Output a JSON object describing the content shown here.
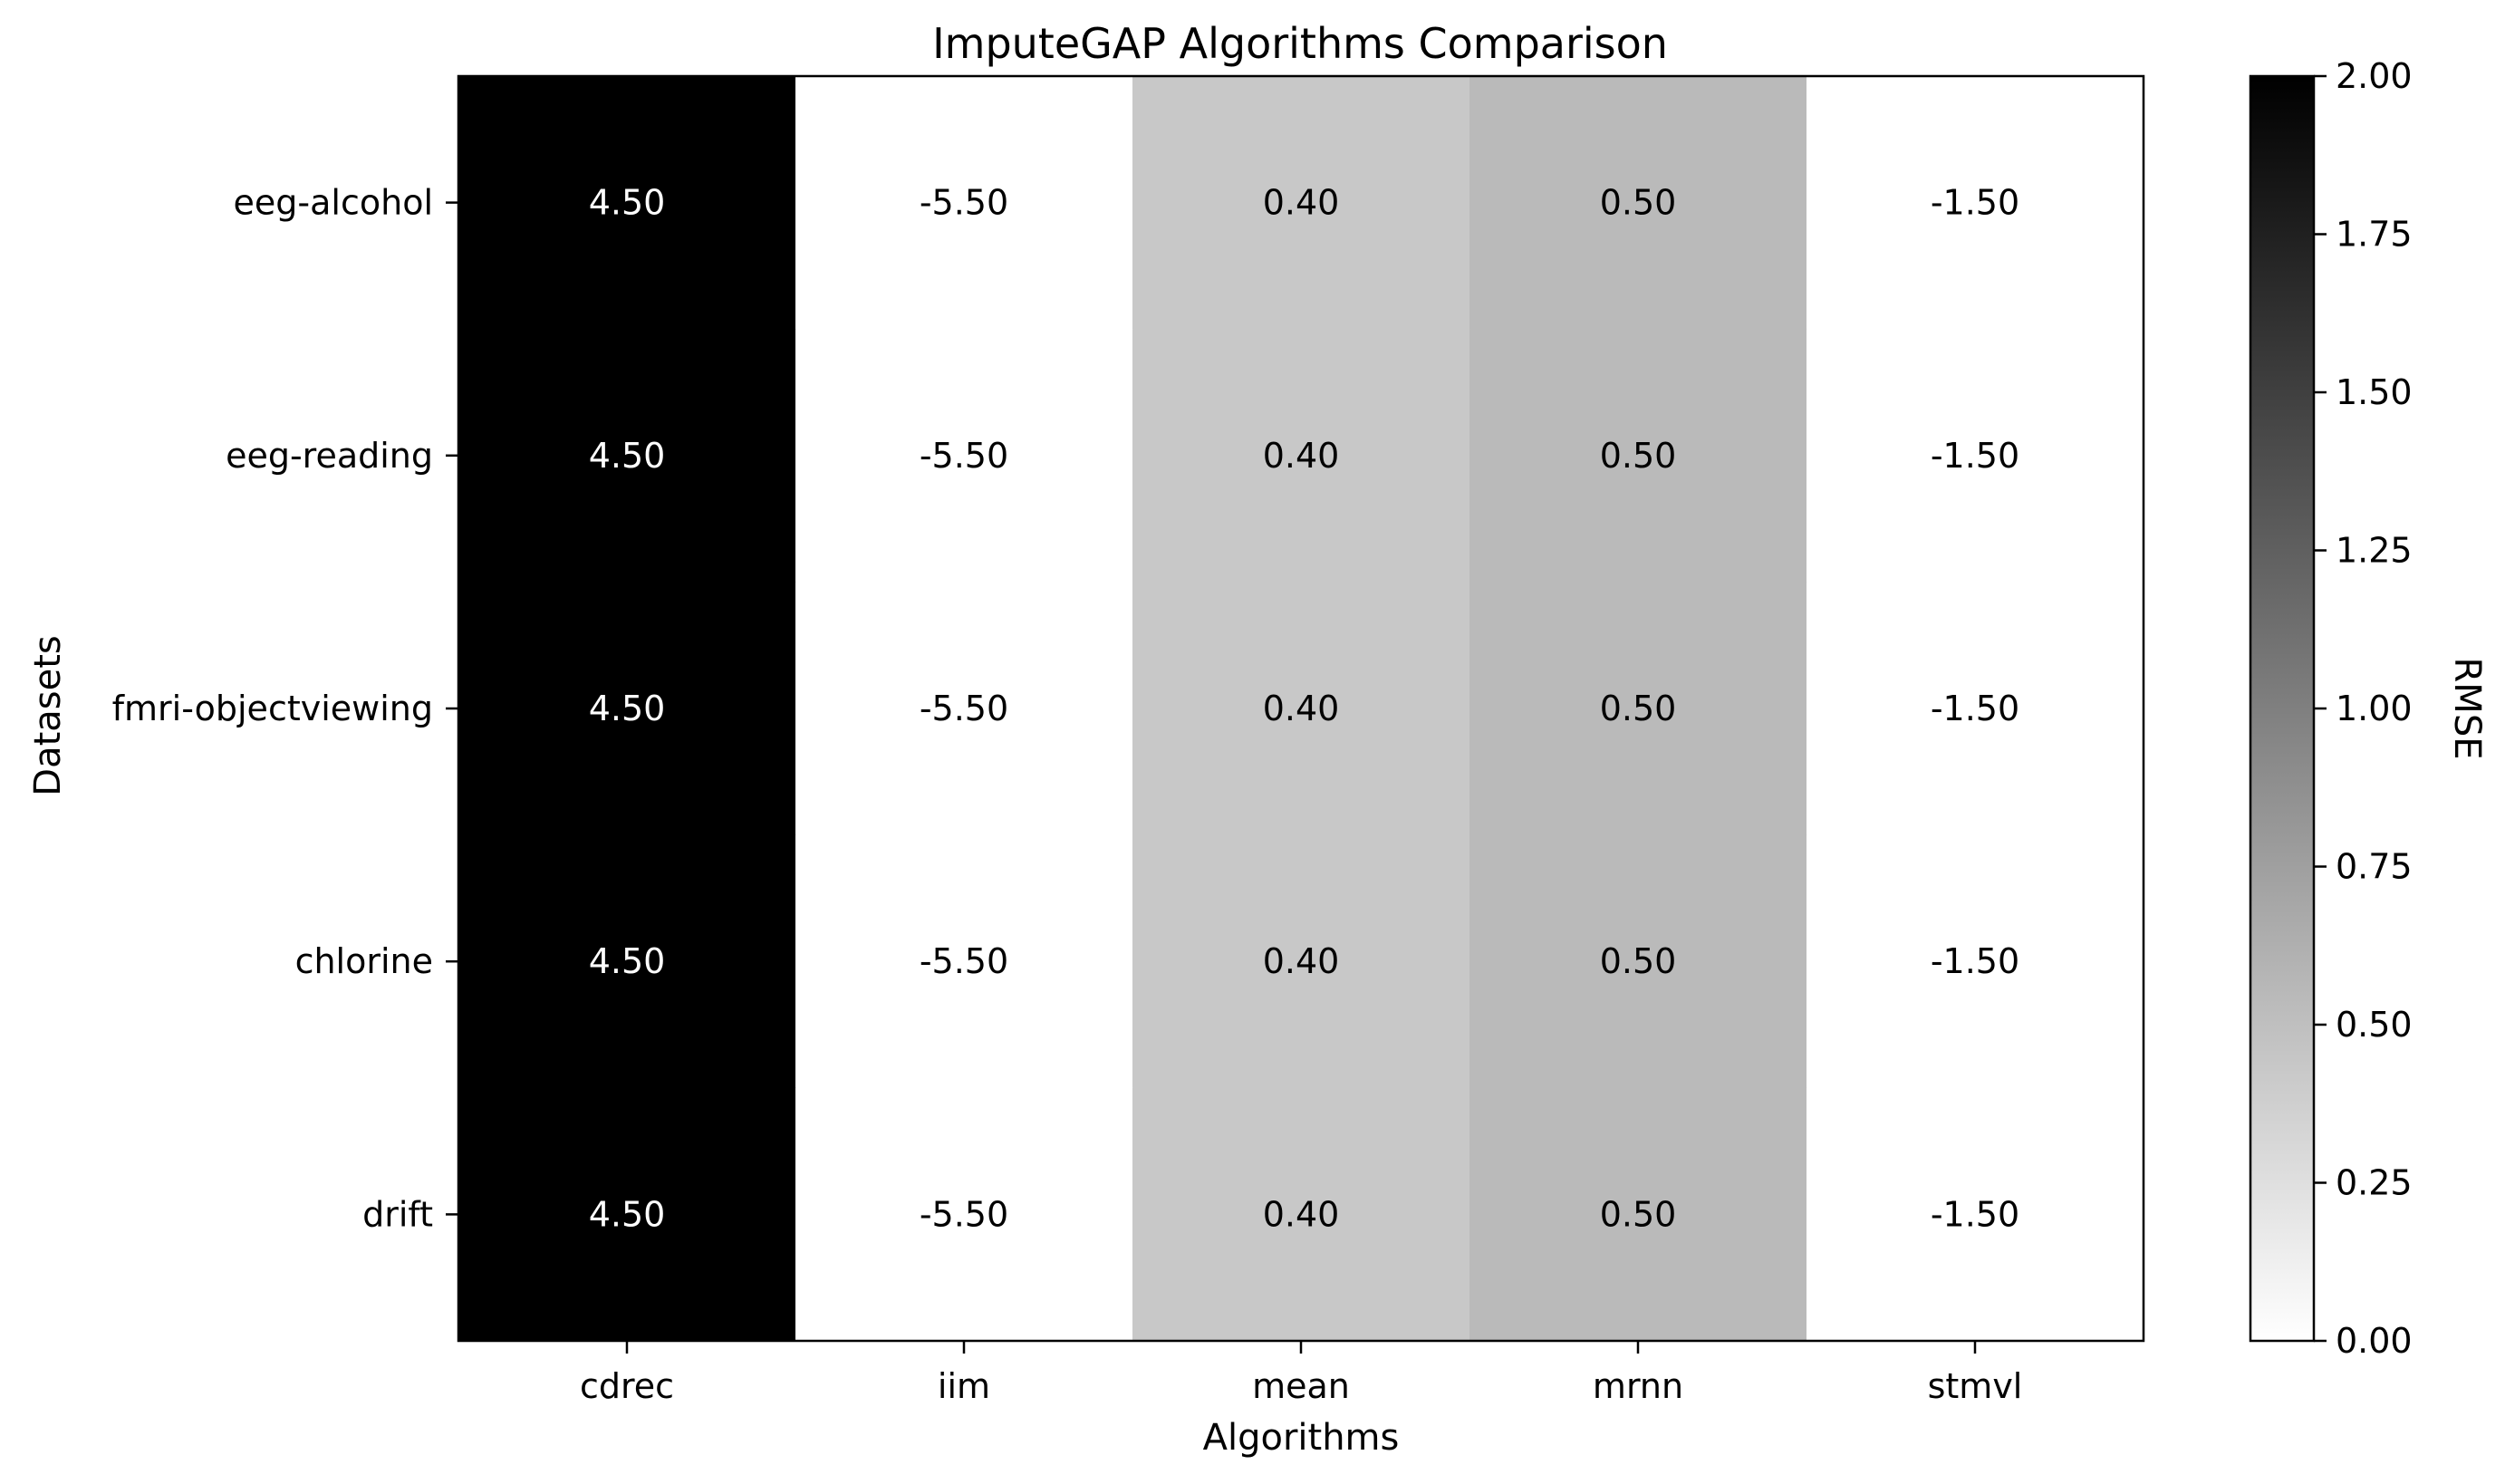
{
  "chart_data": {
    "type": "heatmap",
    "title": "ImputeGAP Algorithms Comparison",
    "xlabel": "Algorithms",
    "ylabel": "Datasets",
    "x_categories": [
      "cdrec",
      "iim",
      "mean",
      "mrnn",
      "stmvl"
    ],
    "y_categories": [
      "eeg-alcohol",
      "eeg-reading",
      "fmri-objectviewing",
      "chlorine",
      "drift"
    ],
    "values": [
      [
        4.5,
        -5.5,
        0.4,
        0.5,
        -1.5
      ],
      [
        4.5,
        -5.5,
        0.4,
        0.5,
        -1.5
      ],
      [
        4.5,
        -5.5,
        0.4,
        0.5,
        -1.5
      ],
      [
        4.5,
        -5.5,
        0.4,
        0.5,
        -1.5
      ],
      [
        4.5,
        -5.5,
        0.4,
        0.5,
        -1.5
      ]
    ],
    "value_labels": [
      [
        "4.50",
        "-5.50",
        "0.40",
        "0.50",
        "-1.50"
      ],
      [
        "4.50",
        "-5.50",
        "0.40",
        "0.50",
        "-1.50"
      ],
      [
        "4.50",
        "-5.50",
        "0.40",
        "0.50",
        "-1.50"
      ],
      [
        "4.50",
        "-5.50",
        "0.40",
        "0.50",
        "-1.50"
      ],
      [
        "4.50",
        "-5.50",
        "0.40",
        "0.50",
        "-1.50"
      ]
    ],
    "colorbar": {
      "label": "RMSE",
      "range": [
        0,
        2
      ],
      "ticks": [
        0,
        0.25,
        0.5,
        0.75,
        1.0,
        1.25,
        1.5,
        1.75,
        2.0
      ],
      "tick_labels": [
        "0.00",
        "0.25",
        "0.50",
        "0.75",
        "1.00",
        "1.25",
        "1.50",
        "1.75",
        "2.00"
      ],
      "colormap": "Greys",
      "low_color": "#ffffff",
      "high_color": "#000000"
    },
    "grid": false
  }
}
